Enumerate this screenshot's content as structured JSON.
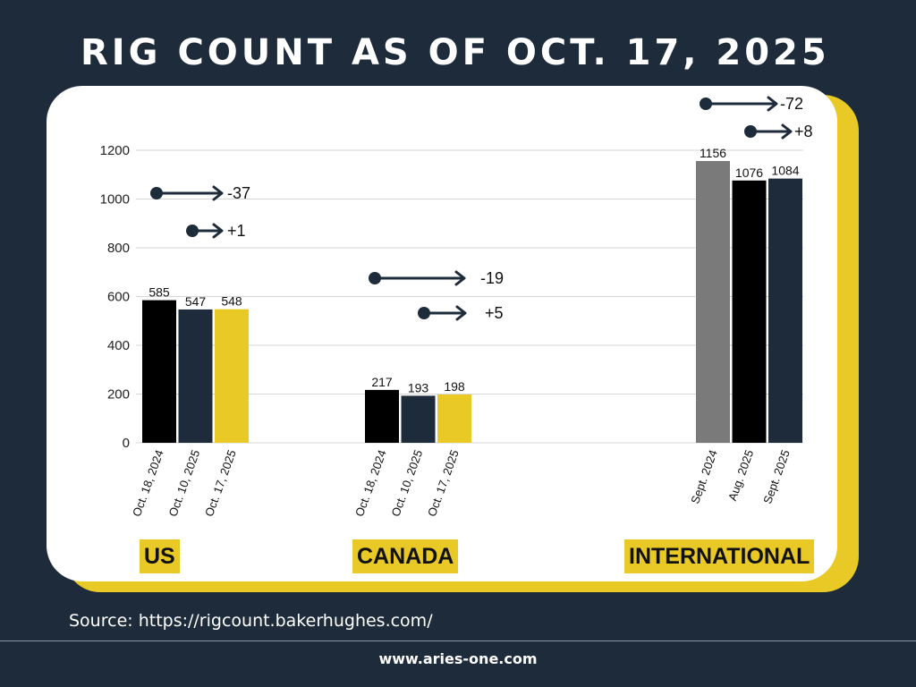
{
  "title": "RIG COUNT AS OF OCT. 17, 2025",
  "source": "Source: https://rigcount.bakerhughes.com/",
  "footer_url": "www.aries-one.com",
  "colors": {
    "background": "#1e2b3a",
    "accent_yellow": "#e9c926",
    "black": "#000000",
    "navy": "#1e2b3a",
    "gray": "#7a7a7a"
  },
  "chart_data": {
    "type": "bar",
    "ylim": [
      0,
      1200
    ],
    "yticks": [
      0,
      200,
      400,
      600,
      800,
      1000,
      1200
    ],
    "grid": true,
    "groups": [
      {
        "name": "US",
        "bars": [
          {
            "label": "Oct. 18, 2024",
            "value": 585,
            "color": "#000000"
          },
          {
            "label": "Oct. 10, 2025",
            "value": 547,
            "color": "#1e2b3a"
          },
          {
            "label": "Oct. 17, 2025",
            "value": 548,
            "color": "#e9c926"
          }
        ],
        "changes": [
          "-37",
          "+1"
        ]
      },
      {
        "name": "CANADA",
        "bars": [
          {
            "label": "Oct. 18, 2024",
            "value": 217,
            "color": "#000000"
          },
          {
            "label": "Oct. 10, 2025",
            "value": 193,
            "color": "#1e2b3a"
          },
          {
            "label": "Oct. 17, 2025",
            "value": 198,
            "color": "#e9c926"
          }
        ],
        "changes": [
          "-19",
          "+5"
        ]
      },
      {
        "name": "INTERNATIONAL",
        "bars": [
          {
            "label": "Sept. 2024",
            "value": 1156,
            "color": "#7a7a7a"
          },
          {
            "label": "Aug. 2025",
            "value": 1076,
            "color": "#000000"
          },
          {
            "label": "Sept. 2025",
            "value": 1084,
            "color": "#1e2b3a"
          }
        ],
        "changes": [
          "-72",
          "+8"
        ]
      }
    ]
  }
}
